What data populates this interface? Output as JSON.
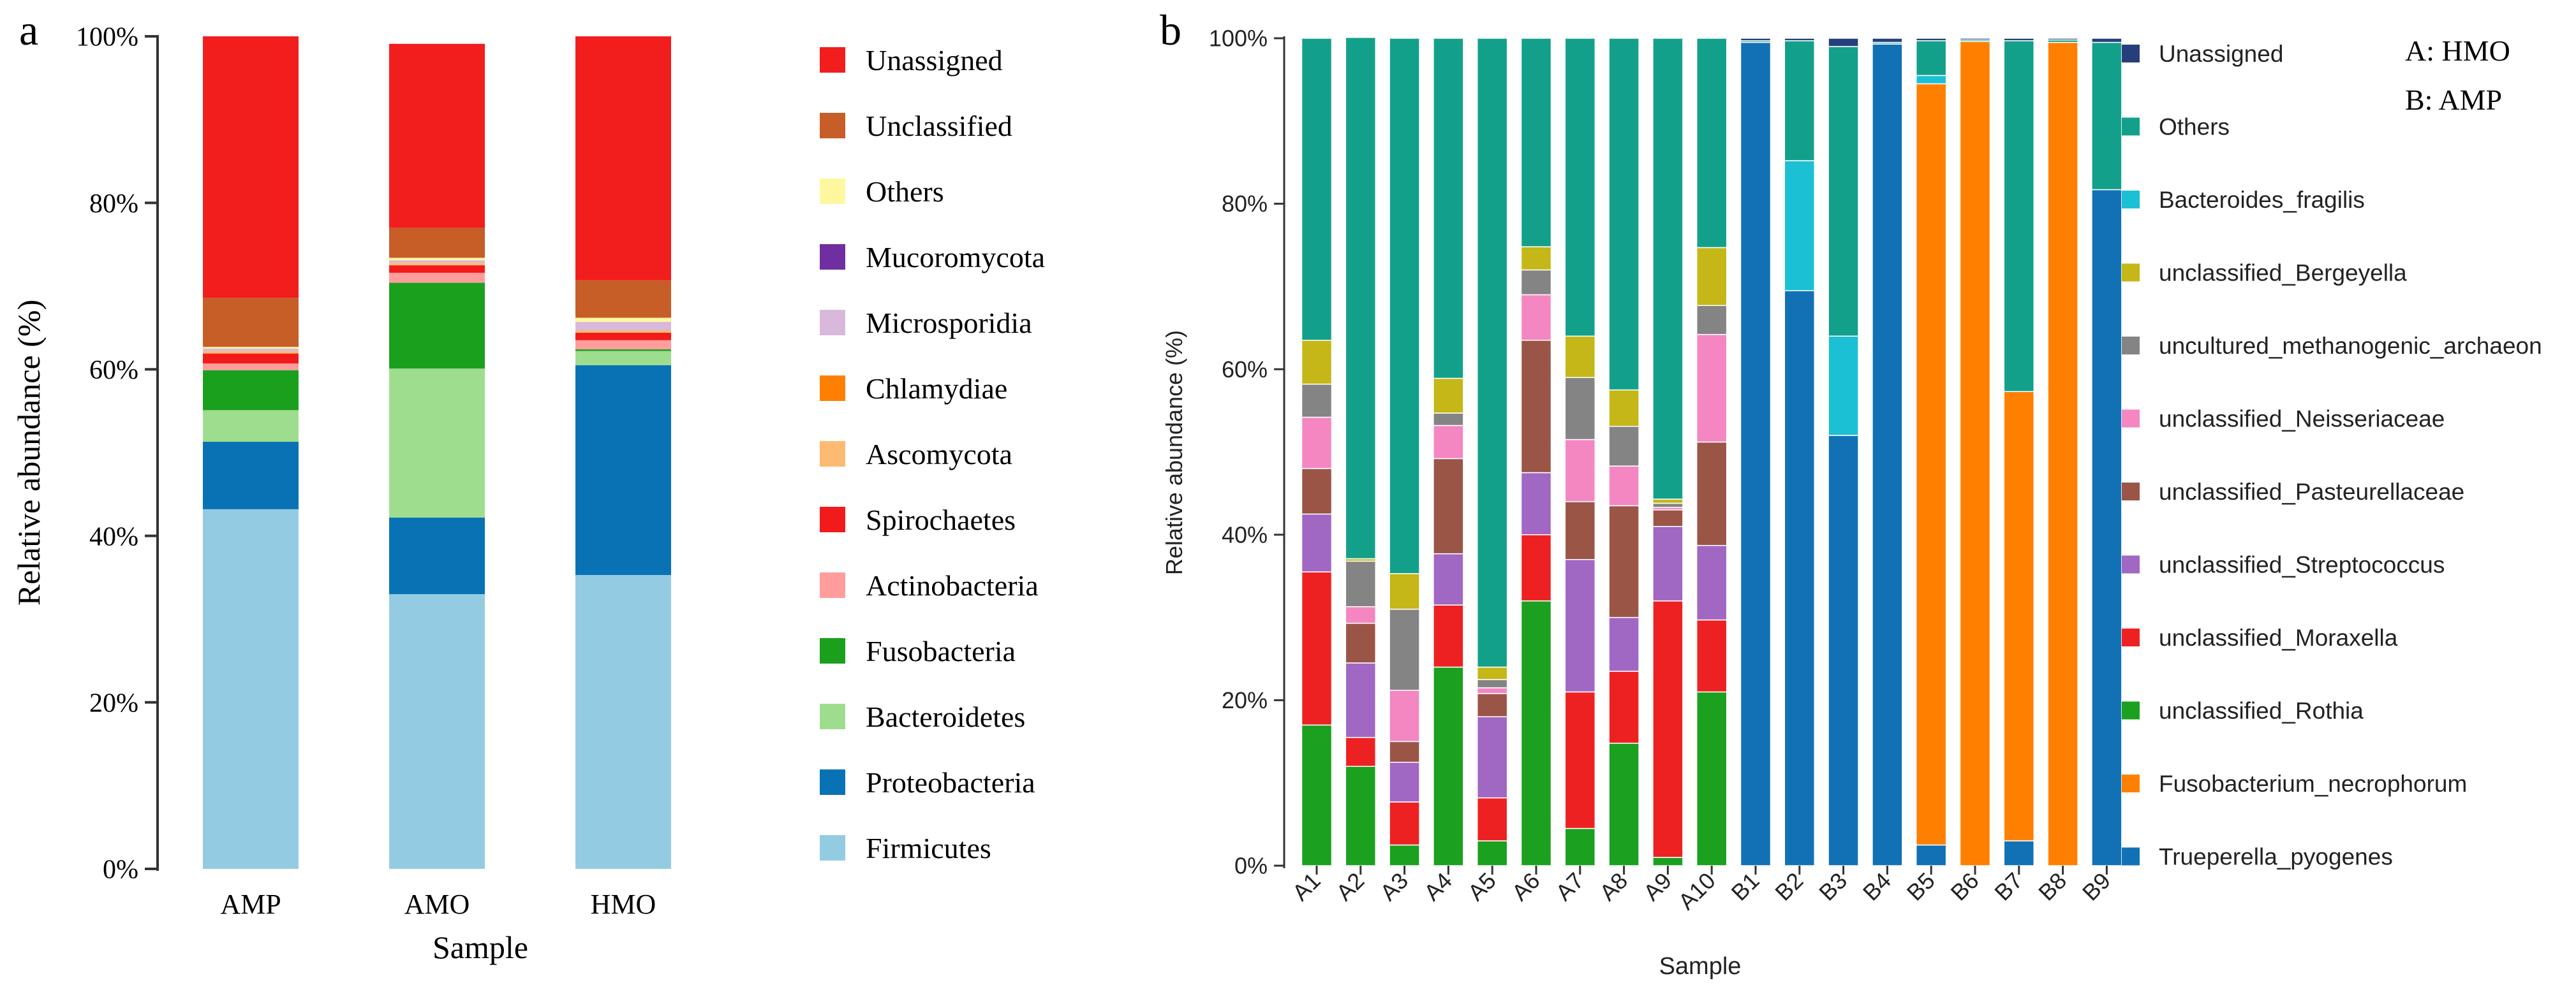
{
  "chart_data": [
    {
      "panel_label": "a",
      "type": "bar",
      "stacked": true,
      "xlabel": "Sample",
      "ylabel": "Relative abundance (%)",
      "yticks": [
        "0%",
        "20%",
        "40%",
        "60%",
        "80%",
        "100%"
      ],
      "ylim": [
        0,
        100
      ],
      "categories": [
        "AMP",
        "AMO",
        "HMO"
      ],
      "series": [
        {
          "name": "Firmicutes",
          "color": "#93CCE2",
          "values": [
            43.2,
            33.0,
            35.3
          ]
        },
        {
          "name": "Proteobacteria",
          "color": "#0872B4",
          "values": [
            8.1,
            9.2,
            25.2
          ]
        },
        {
          "name": "Bacteroidetes",
          "color": "#9EDD8E",
          "values": [
            3.8,
            17.9,
            1.7
          ]
        },
        {
          "name": "Fusobacteria",
          "color": "#1BA01E",
          "values": [
            4.8,
            10.3,
            0.2
          ]
        },
        {
          "name": "Actinobacteria",
          "color": "#FF9D9D",
          "values": [
            0.8,
            1.2,
            1.1
          ]
        },
        {
          "name": "Spirochaetes",
          "color": "#F11B1B",
          "values": [
            1.2,
            0.9,
            0.9
          ]
        },
        {
          "name": "Ascomycota",
          "color": "#FDBA72",
          "values": [
            0.3,
            0.3,
            0.3
          ]
        },
        {
          "name": "Chlamydiae",
          "color": "#FF8000",
          "values": [
            0.0,
            0.0,
            0.0
          ]
        },
        {
          "name": "Microsporidia",
          "color": "#D8B9DC",
          "values": [
            0.3,
            0.3,
            1.0
          ]
        },
        {
          "name": "Mucoromycota",
          "color": "#6F2FA0",
          "values": [
            0.0,
            0.0,
            0.0
          ]
        },
        {
          "name": "Others",
          "color": "#FFF7A0",
          "values": [
            0.2,
            0.3,
            0.5
          ]
        },
        {
          "name": "Unclassified",
          "color": "#C75D27",
          "values": [
            5.9,
            3.6,
            4.5
          ]
        },
        {
          "name": "Unassigned",
          "color": "#F21D1D",
          "values": [
            31.4,
            22.1,
            29.3
          ]
        }
      ]
    },
    {
      "panel_label": "b",
      "type": "bar",
      "stacked": true,
      "xlabel": "Sample",
      "ylabel": "Relative abundance (%)",
      "yticks": [
        "0%",
        "20%",
        "40%",
        "60%",
        "80%",
        "100%"
      ],
      "ylim": [
        0,
        100
      ],
      "annotations": [
        "A: HMO",
        "B: AMP"
      ],
      "categories": [
        "A1",
        "A2",
        "A3",
        "A4",
        "A5",
        "A6",
        "A7",
        "A8",
        "A9",
        "A10",
        "B1",
        "B2",
        "B3",
        "B4",
        "B5",
        "B6",
        "B7",
        "B8",
        "B9"
      ],
      "series": [
        {
          "name": "Trueperella_pyogenes",
          "color": "#1271B5",
          "values": [
            0,
            0,
            0,
            0,
            0,
            0,
            0,
            0,
            0,
            0,
            99.5,
            69.5,
            52.0,
            99.3,
            2.5,
            0,
            3.0,
            0,
            81.7
          ]
        },
        {
          "name": "Fusobacterium_necrophorum",
          "color": "#FF8000",
          "values": [
            0,
            0,
            0,
            0,
            0,
            0,
            0,
            0,
            0,
            0,
            0,
            0,
            0,
            0,
            92.0,
            99.6,
            54.3,
            99.5,
            0
          ]
        },
        {
          "name": "unclassified_Rothia",
          "color": "#1BA01F",
          "values": [
            17.0,
            12.0,
            2.5,
            24.0,
            3.0,
            32.0,
            4.5,
            14.8,
            1.0,
            21.0,
            0,
            0,
            0,
            0,
            0,
            0,
            0,
            0,
            0
          ]
        },
        {
          "name": "unclassified_Moraxella",
          "color": "#EE2122",
          "values": [
            18.5,
            3.5,
            5.2,
            7.5,
            5.2,
            8.0,
            16.5,
            8.7,
            31.0,
            8.7,
            0,
            0,
            0,
            0,
            0,
            0,
            0,
            0,
            0
          ]
        },
        {
          "name": "unclassified_Streptococcus",
          "color": "#A067C3",
          "values": [
            7.0,
            9.0,
            4.8,
            6.2,
            9.8,
            7.5,
            16.0,
            6.5,
            9.0,
            9.0,
            0,
            0,
            0,
            0,
            0,
            0,
            0,
            0,
            0
          ]
        },
        {
          "name": "unclassified_Pasteurellaceae",
          "color": "#9A5547",
          "values": [
            5.5,
            4.8,
            2.5,
            11.5,
            2.8,
            16.0,
            7.0,
            13.5,
            2.0,
            12.5,
            0,
            0,
            0,
            0,
            0,
            0,
            0,
            0,
            0
          ]
        },
        {
          "name": "unclassified_Neisseriaceae",
          "color": "#F486C2",
          "values": [
            6.2,
            2.0,
            6.2,
            4.0,
            0.7,
            5.5,
            7.5,
            4.8,
            0.3,
            13.0,
            0,
            0,
            0,
            0,
            0,
            0,
            0,
            0,
            0
          ]
        },
        {
          "name": "uncultured_methanogenic_archaeon",
          "color": "#848484",
          "values": [
            4.0,
            5.5,
            9.8,
            1.5,
            1.0,
            3.0,
            7.5,
            4.8,
            0.5,
            3.5,
            0,
            0,
            0,
            0,
            0,
            0,
            0,
            0,
            0
          ]
        },
        {
          "name": "unclassified_Bergeyella",
          "color": "#C4B717",
          "values": [
            5.3,
            0.3,
            4.3,
            4.2,
            1.5,
            2.8,
            5.0,
            4.4,
            0.5,
            7.0,
            0,
            0,
            0,
            0,
            0,
            0,
            0,
            0,
            0
          ]
        },
        {
          "name": "Bacteroides_fragilis",
          "color": "#1BC0D4",
          "values": [
            0,
            0,
            0,
            0,
            0,
            0,
            0,
            0,
            0,
            0,
            0,
            15.7,
            12.0,
            0,
            1.0,
            0,
            0,
            0,
            0
          ]
        },
        {
          "name": "Others",
          "color": "#13A08A",
          "values": [
            36.5,
            63.0,
            64.7,
            41.1,
            76.0,
            25.2,
            36.0,
            42.5,
            55.7,
            25.3,
            0.2,
            14.5,
            35.0,
            0.2,
            4.2,
            0.2,
            42.4,
            0.3,
            17.8
          ]
        },
        {
          "name": "Unassigned",
          "color": "#263F7C",
          "values": [
            0,
            0,
            0,
            0,
            0,
            0,
            0,
            0,
            0,
            0,
            0.3,
            0.3,
            1.0,
            0.5,
            0.3,
            0.2,
            0.3,
            0.2,
            0.5
          ]
        }
      ]
    }
  ]
}
